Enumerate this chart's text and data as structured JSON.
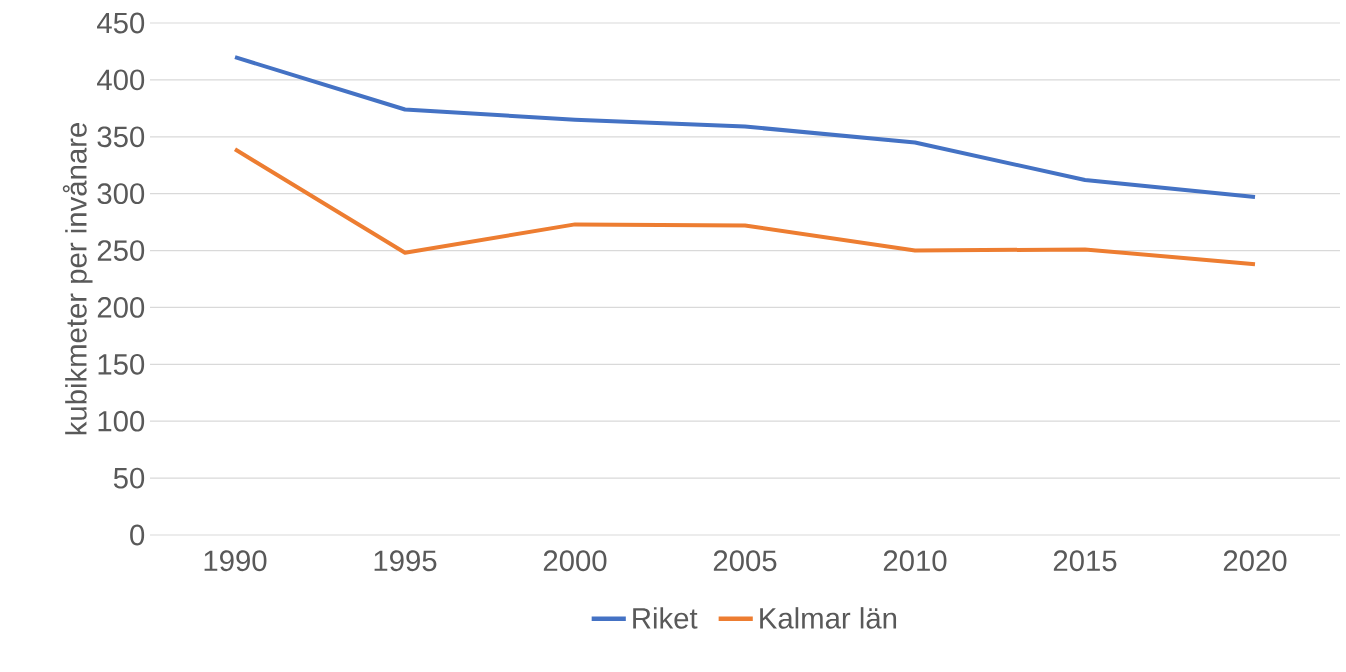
{
  "chart_data": {
    "type": "line",
    "ylabel": "kubikmeter per invånare",
    "categories": [
      "1990",
      "1995",
      "2000",
      "2005",
      "2010",
      "2015",
      "2020"
    ],
    "series": [
      {
        "name": "Riket",
        "color": "#4472c4",
        "values": [
          420,
          374,
          365,
          359,
          345,
          312,
          297
        ]
      },
      {
        "name": "Kalmar län",
        "color": "#ed7d31",
        "values": [
          339,
          248,
          273,
          272,
          250,
          251,
          238
        ]
      }
    ],
    "ylim": [
      0,
      450
    ],
    "yticks": [
      0,
      50,
      100,
      150,
      200,
      250,
      300,
      350,
      400,
      450
    ],
    "grid": "y",
    "legend": "bottom"
  }
}
